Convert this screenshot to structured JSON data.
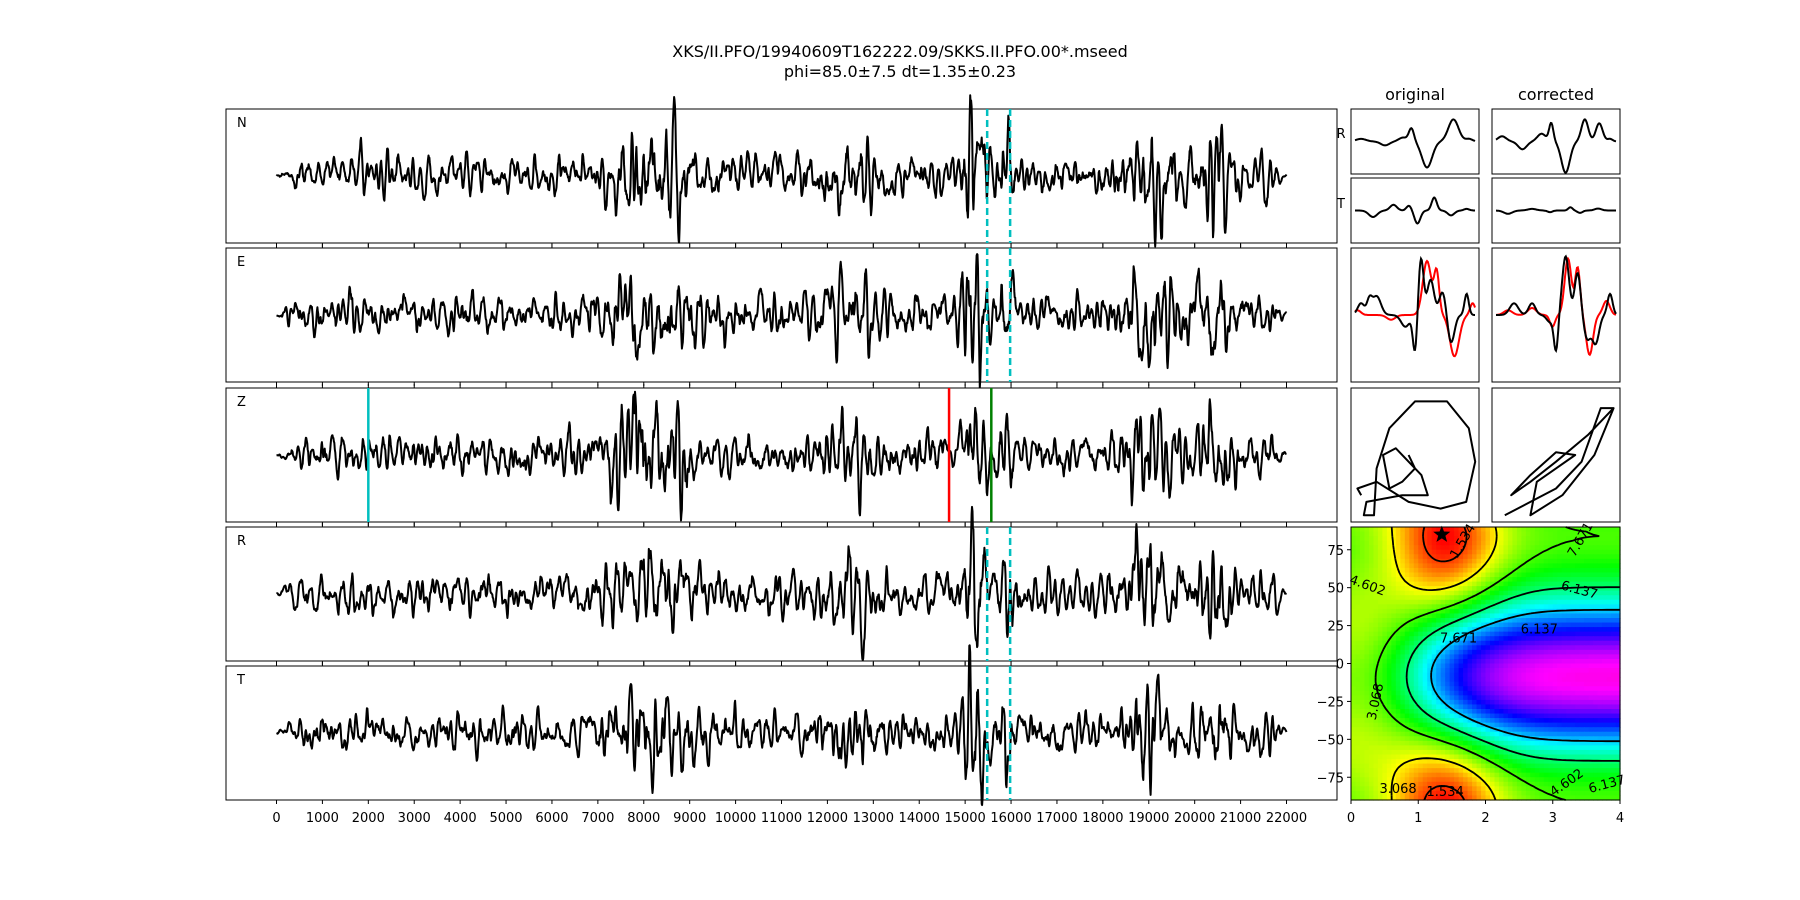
{
  "title": {
    "line1": "XKS/II.PFO/19940609T162222.09/SKKS.II.PFO.00*.mseed",
    "line2": "phi=85.0±7.5 dt=1.35±0.23"
  },
  "columns": {
    "original": "original",
    "corrected": "corrected"
  },
  "row_labels": {
    "R": "R",
    "T": "T"
  },
  "chart_data": [
    {
      "type": "line",
      "description_kind": "seismogram traces",
      "panels": [
        {
          "label": "N",
          "markers": [
            "window"
          ]
        },
        {
          "label": "E",
          "markers": [
            "window"
          ]
        },
        {
          "label": "Z",
          "markers": [
            "picks"
          ]
        },
        {
          "label": "R",
          "markers": [
            "window"
          ]
        },
        {
          "label": "T",
          "markers": [
            "window"
          ]
        }
      ],
      "xlim": [
        -1100,
        23100
      ],
      "xticks": [
        0,
        1000,
        2000,
        3000,
        4000,
        5000,
        6000,
        7000,
        8000,
        9000,
        10000,
        11000,
        12000,
        13000,
        14000,
        15000,
        16000,
        17000,
        18000,
        19000,
        20000,
        21000,
        22000
      ],
      "x_range_data": [
        0,
        22000
      ],
      "window": {
        "start": 15480,
        "end": 15980,
        "color": "#00bfbf",
        "style": "dashed"
      },
      "picks": [
        {
          "x": 2000,
          "color": "#00bfbf"
        },
        {
          "x": 14650,
          "color": "#ff0000"
        },
        {
          "x": 15570,
          "color": "#008000"
        }
      ],
      "trace_color": "#000000"
    },
    {
      "type": "line",
      "description_kind": "window waveforms",
      "panels": [
        "original-R",
        "original-T",
        "original-overlay",
        "original-particle-motion",
        "corrected-R",
        "corrected-T",
        "corrected-overlay",
        "corrected-particle-motion"
      ],
      "overlay_colors": [
        "#ff0000",
        "#000000"
      ]
    },
    {
      "type": "heatmap",
      "xlim": [
        0,
        4
      ],
      "ylim": [
        -90,
        90
      ],
      "xticks": [
        0,
        1,
        2,
        3,
        4
      ],
      "yticks": [
        75,
        50,
        25,
        0,
        -25,
        -50,
        -75
      ],
      "contour_levels": [
        1.534,
        3.068,
        4.602,
        6.137,
        7.671
      ],
      "colormap": "gist_rainbow",
      "best_fit": {
        "dt": 1.35,
        "phi": 85.0,
        "marker": "star"
      }
    }
  ]
}
